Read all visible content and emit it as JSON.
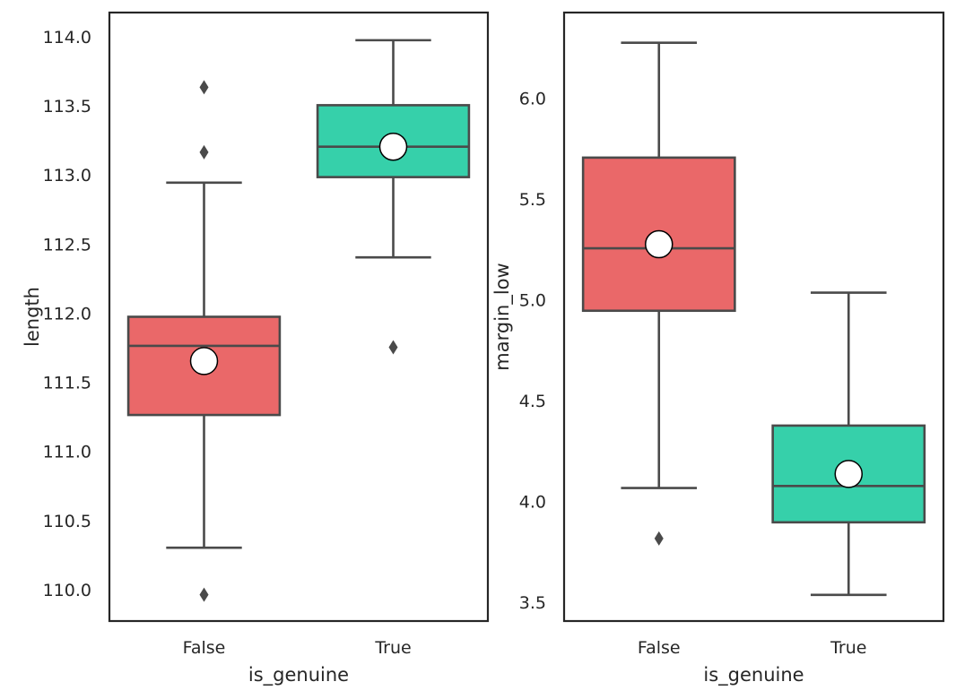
{
  "chart_data": [
    {
      "type": "box",
      "xlabel": "is_genuine",
      "ylabel": "length",
      "ylim": [
        109.78,
        114.18
      ],
      "yticks": [
        110.0,
        110.5,
        111.0,
        111.5,
        112.0,
        112.5,
        113.0,
        113.5,
        114.0
      ],
      "ytick_labels": [
        "110.0",
        "110.5",
        "111.0",
        "111.5",
        "112.0",
        "112.5",
        "113.0",
        "113.5",
        "114.0"
      ],
      "categories": [
        "False",
        "True"
      ],
      "boxes": [
        {
          "category": "False",
          "color": "#EA6869",
          "whisker_low": 110.31,
          "q1": 111.27,
          "median": 111.77,
          "q3": 111.98,
          "whisker_high": 112.95,
          "mean": 111.66,
          "outliers": [
            109.97,
            113.17,
            113.64
          ]
        },
        {
          "category": "True",
          "color": "#36D0AA",
          "whisker_low": 112.41,
          "q1": 112.99,
          "median": 113.21,
          "q3": 113.51,
          "whisker_high": 113.98,
          "mean": 113.21,
          "outliers": [
            111.76
          ]
        }
      ]
    },
    {
      "type": "box",
      "xlabel": "is_genuine",
      "ylabel": "margin_low",
      "ylim": [
        3.41,
        6.43
      ],
      "yticks": [
        3.5,
        4.0,
        4.5,
        5.0,
        5.5,
        6.0
      ],
      "ytick_labels": [
        "3.5",
        "4.0",
        "4.5",
        "5.0",
        "5.5",
        "6.0"
      ],
      "categories": [
        "False",
        "True"
      ],
      "boxes": [
        {
          "category": "False",
          "color": "#EA6869",
          "whisker_low": 4.07,
          "q1": 4.95,
          "median": 5.26,
          "q3": 5.71,
          "whisker_high": 6.28,
          "mean": 5.28,
          "outliers": [
            3.82
          ]
        },
        {
          "category": "True",
          "color": "#36D0AA",
          "whisker_low": 3.54,
          "q1": 3.9,
          "median": 4.08,
          "q3": 4.38,
          "whisker_high": 5.04,
          "mean": 4.14,
          "outliers": []
        }
      ]
    }
  ]
}
